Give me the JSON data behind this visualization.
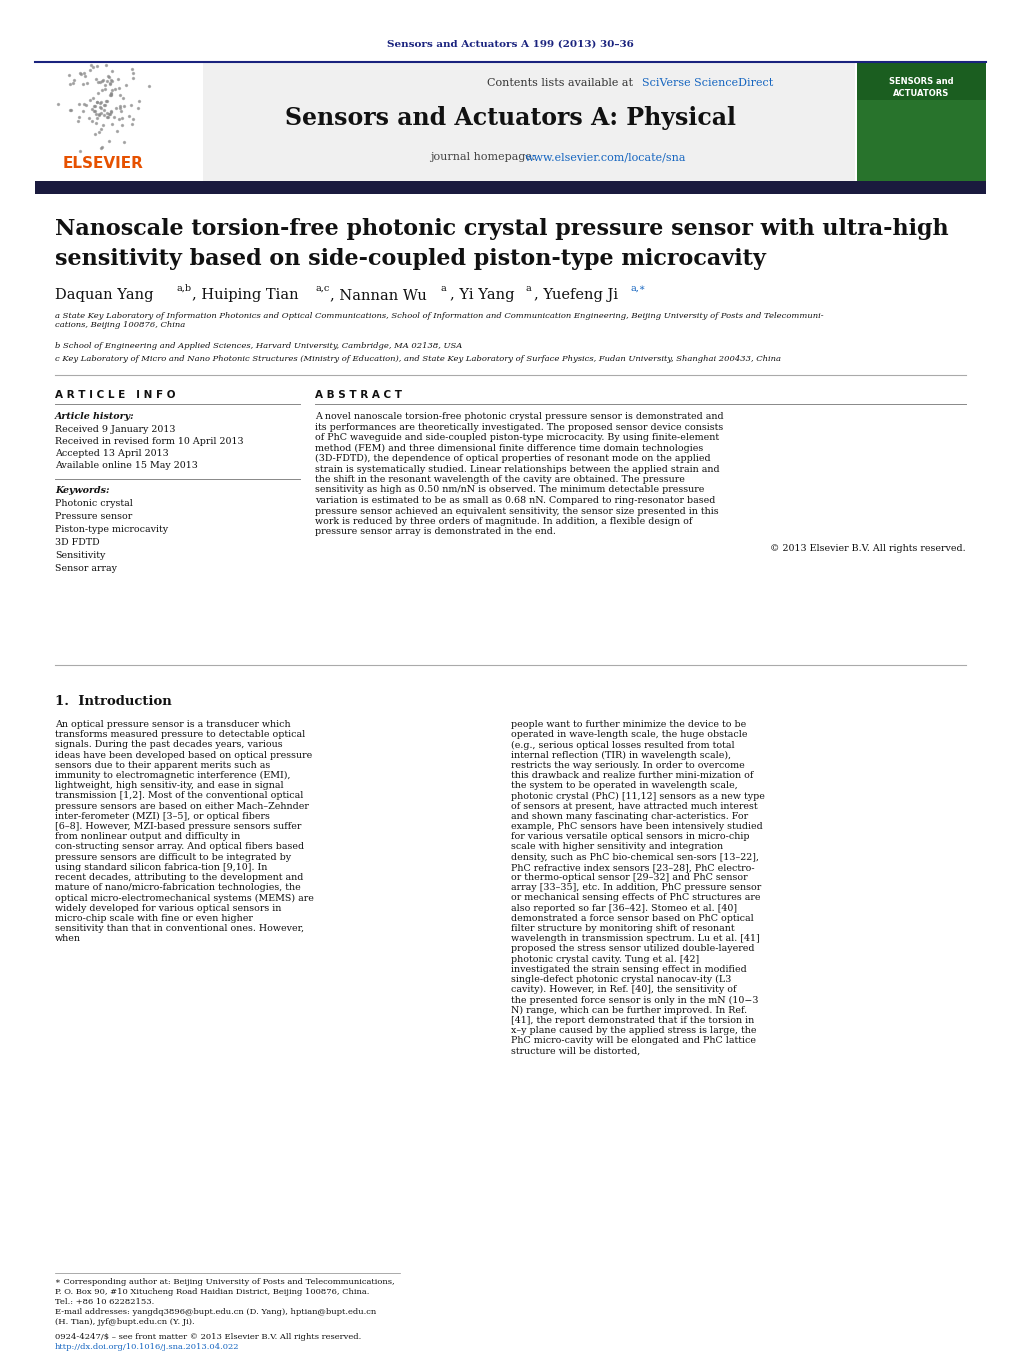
{
  "page_bg": "#ffffff",
  "header_journal": "Sensors and Actuators A 199 (2013) 30–36",
  "header_journal_color": "#1a237e",
  "journal_name": "Sensors and Actuators A: Physical",
  "contents_text": "Contents lists available at ",
  "contents_link": "SciVerse ScienceDirect",
  "journal_url_prefix": "journal homepage: ",
  "journal_url_link": "www.elsevier.com/locate/sna",
  "header_bar_color": "#1a1a2e",
  "paper_title_line1": "Nanoscale torsion-free photonic crystal pressure sensor with ultra-high",
  "paper_title_line2": "sensitivity based on side-coupled piston-type microcavity",
  "author_line": "Daquan Yang",
  "affil_a": "a State Key Laboratory of Information Photonics and Optical Communications, School of Information and Communication Engineering, Beijing University of Posts and Telecommuni-\ncations, Beijing 100876, China",
  "affil_b": "b School of Engineering and Applied Sciences, Harvard University, Cambridge, MA 02138, USA",
  "affil_c": "c Key Laboratory of Micro and Nano Photonic Structures (Ministry of Education), and State Key Laboratory of Surface Physics, Fudan University, Shanghai 200433, China",
  "article_info_header": "A R T I C L E   I N F O",
  "abstract_header": "A B S T R A C T",
  "article_history_label": "Article history:",
  "received": "Received 9 January 2013",
  "received_revised": "Received in revised form 10 April 2013",
  "accepted": "Accepted 13 April 2013",
  "available": "Available online 15 May 2013",
  "keywords_label": "Keywords:",
  "keywords": [
    "Photonic crystal",
    "Pressure sensor",
    "Piston-type microcavity",
    "3D FDTD",
    "Sensitivity",
    "Sensor array"
  ],
  "abstract_text": "A novel nanoscale torsion-free photonic crystal pressure sensor is demonstrated and its performances are theoretically investigated. The proposed sensor device consists of PhC waveguide and side-coupled piston-type microcacity. By using finite-element method (FEM) and three dimensional finite difference time domain technologies (3D-FDTD), the dependence of optical properties of resonant mode on the applied strain is systematically studied. Linear relationships between the applied strain and the shift in the resonant wavelength of the cavity are obtained. The pressure sensitivity as high as 0.50 nm/nN is observed. The minimum detectable pressure variation is estimated to be as small as 0.68 nN. Compared to ring-resonator based pressure sensor achieved an equivalent sensitivity, the sensor size presented in this work is reduced by three orders of magnitude. In addition, a flexible design of pressure sensor array is demonstrated in the end.",
  "copyright": "© 2013 Elsevier B.V. All rights reserved.",
  "section1_title": "1.  Introduction",
  "intro_col1": "An optical pressure sensor is a transducer which transforms measured pressure to detectable optical signals. During the past decades years, various ideas have been developed based on optical pressure sensors due to their apparent merits such as immunity to electromagnetic interference (EMI), lightweight, high sensitiv-ity, and ease in signal transmission [1,2]. Most of the conventional optical pressure sensors are based on either Mach–Zehnder inter-ferometer (MZI) [3–5], or optical fibers [6–8]. However, MZI-based pressure sensors suffer from nonlinear output and difficulty in con-structing sensor array. And optical fibers based pressure sensors are difficult to be integrated by using standard silicon fabrica-tion [9,10]. In recent decades, attributing to the development and mature of nano/micro-fabrication technologies, the optical micro-electromechanical systems (MEMS) are widely developed for various optical sensors in micro-chip scale with fine or even higher sensitivity than that in conventional ones. However, when",
  "intro_col2": "people want to further minimize the device to be operated in wave-length scale, the huge obstacle (e.g., serious optical losses resulted from total internal reflection (TIR) in wavelength scale), restricts the way seriously.\n    In order to overcome this drawback and realize further mini-mization of the system to be operated in wavelength scale, photonic crystal (PhC) [11,12] sensors as a new type of sensors at present, have attracted much interest and shown many fascinating char-acteristics. For example, PhC sensors have been intensively studied for various versatile optical sensors in micro-chip scale with higher sensitivity and integration density, such as PhC bio-chemical sen-sors [13–22], PhC refractive index sensors [23–28], PhC electro- or thermo-optical sensor [29–32] and PhC sensor array [33–35], etc. In addition, PhC pressure sensor or mechanical sensing effects of PhC structures are also reported so far [36–42]. Stomeo et al. [40] demonstrated a force sensor based on PhC optical filter structure by monitoring shift of resonant wavelength in transmission spectrum. Lu et al. [41] proposed the stress sensor utilized double-layered photonic crystal cavity. Tung et al. [42] investigated the strain sensing effect in modified single-defect photonic crystal nanocav-ity (L3 cavity). However, in Ref. [40], the sensitivity of the presented force sensor is only in the mN (10−3 N) range, which can be further improved. In Ref. [41], the report demonstrated that if the torsion in x–y plane caused by the applied stress is large, the PhC micro-cavity will be elongated and PhC lattice structure will be distorted,",
  "footer_star": "∗ Corresponding author at: Beijing University of Posts and Telecommunications,",
  "footer_addr": "P. O. Box 90, #10 Xitucheng Road Haidian District, Beijing 100876, China.",
  "footer_tel": "Tel.: +86 10 62282153.",
  "footer_email1": "E-mail addresses: yangdq3896@bupt.edu.cn (D. Yang), hptian@bupt.edu.cn",
  "footer_email2": "(H. Tian), jyf@bupt.edu.cn (Y. Ji).",
  "footer_line2": "0924-4247/$ – see front matter © 2013 Elsevier B.V. All rights reserved.",
  "footer_line3": "http://dx.doi.org/10.1016/j.sna.2013.04.022",
  "elsevier_color": "#e65100",
  "sciverse_color": "#1565c0",
  "link_color": "#1565c0",
  "dark_navy": "#1a1a3e",
  "header_blue": "#1a237e"
}
